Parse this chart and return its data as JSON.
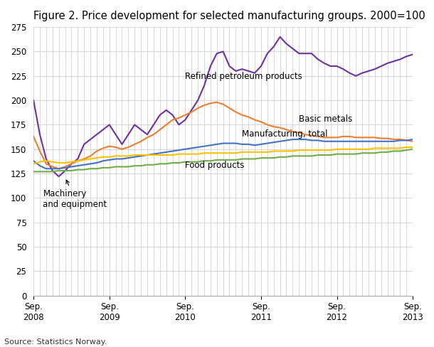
{
  "title": "Figure 2. Price development for selected manufacturing groups. 2000=100",
  "source": "Source: Statistics Norway.",
  "x_tick_labels": [
    "Sep.\n2008",
    "Sep.\n2009",
    "Sep.\n2010",
    "Sep.\n2011",
    "Sep.\n2012",
    "Sep.\n2013"
  ],
  "x_tick_positions": [
    0,
    12,
    24,
    36,
    48,
    60
  ],
  "ylim": [
    0,
    275
  ],
  "yticks": [
    0,
    25,
    50,
    75,
    100,
    125,
    150,
    175,
    200,
    225,
    250,
    275
  ],
  "series": {
    "refined_petroleum": {
      "label": "Refined petroleum products",
      "color": "#7030a0",
      "data": [
        200,
        165,
        140,
        128,
        122,
        128,
        135,
        140,
        155,
        160,
        165,
        170,
        175,
        165,
        155,
        165,
        175,
        170,
        165,
        175,
        185,
        190,
        185,
        175,
        180,
        190,
        200,
        215,
        235,
        248,
        250,
        235,
        230,
        232,
        230,
        228,
        235,
        248,
        255,
        265,
        258,
        253,
        248,
        248,
        248,
        242,
        238,
        235,
        235,
        232,
        228,
        225,
        228,
        230,
        232,
        235,
        238,
        240,
        242,
        245,
        247
      ]
    },
    "basic_metals": {
      "label": "Basic metals",
      "color": "#ed7d31",
      "data": [
        163,
        148,
        135,
        132,
        130,
        132,
        135,
        138,
        140,
        143,
        148,
        151,
        153,
        152,
        150,
        152,
        155,
        158,
        162,
        165,
        170,
        175,
        180,
        182,
        185,
        188,
        192,
        195,
        197,
        198,
        196,
        192,
        188,
        185,
        183,
        180,
        178,
        175,
        173,
        172,
        170,
        168,
        167,
        165,
        164,
        163,
        162,
        162,
        162,
        163,
        163,
        162,
        162,
        162,
        162,
        161,
        161,
        160,
        160,
        159,
        158
      ]
    },
    "manufacturing_total": {
      "label": "Manufacturing, total",
      "color": "#4472c4",
      "data": [
        138,
        133,
        130,
        130,
        130,
        131,
        132,
        133,
        134,
        135,
        136,
        138,
        139,
        140,
        140,
        141,
        142,
        143,
        144,
        145,
        146,
        147,
        148,
        149,
        150,
        151,
        152,
        153,
        154,
        155,
        156,
        156,
        156,
        155,
        155,
        154,
        155,
        156,
        157,
        158,
        159,
        160,
        160,
        160,
        159,
        159,
        158,
        158,
        158,
        158,
        158,
        158,
        158,
        158,
        158,
        158,
        158,
        158,
        159,
        159,
        160
      ]
    },
    "machinery_equipment": {
      "label": "Machinery and equipment",
      "color": "#ffc000",
      "data": [
        135,
        137,
        138,
        137,
        136,
        136,
        137,
        138,
        139,
        140,
        141,
        142,
        142,
        143,
        143,
        143,
        144,
        144,
        144,
        144,
        144,
        144,
        144,
        145,
        145,
        145,
        145,
        146,
        146,
        146,
        146,
        146,
        146,
        147,
        147,
        147,
        147,
        147,
        148,
        148,
        148,
        148,
        149,
        149,
        149,
        149,
        149,
        149,
        150,
        150,
        150,
        150,
        150,
        150,
        151,
        151,
        151,
        151,
        151,
        152,
        152
      ]
    },
    "food_products": {
      "label": "Food products",
      "color": "#70ad47",
      "data": [
        127,
        127,
        127,
        127,
        128,
        128,
        128,
        129,
        129,
        130,
        130,
        131,
        131,
        132,
        132,
        132,
        133,
        133,
        134,
        134,
        135,
        135,
        136,
        136,
        137,
        137,
        137,
        138,
        138,
        139,
        139,
        139,
        139,
        140,
        140,
        140,
        141,
        141,
        141,
        142,
        142,
        143,
        143,
        143,
        143,
        144,
        144,
        144,
        145,
        145,
        145,
        145,
        146,
        146,
        146,
        147,
        147,
        148,
        148,
        149,
        150
      ]
    }
  },
  "background_color": "#ffffff",
  "grid_color": "#d0d0d0",
  "title_fontsize": 10.5,
  "source_fontsize": 8
}
